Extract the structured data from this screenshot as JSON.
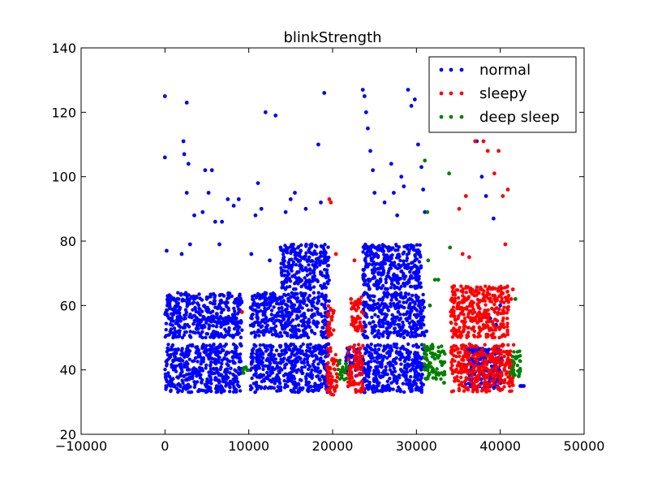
{
  "chart_data": {
    "type": "scatter",
    "title": "blinkStrength",
    "xlabel": "",
    "ylabel": "",
    "xlim": [
      -10000,
      50000
    ],
    "ylim": [
      20,
      140
    ],
    "xticks": [
      -10000,
      0,
      10000,
      20000,
      30000,
      40000,
      50000
    ],
    "yticks": [
      20,
      40,
      60,
      80,
      100,
      120,
      140
    ],
    "xtick_labels": [
      "−10000",
      "0",
      "10000",
      "20000",
      "30000",
      "40000",
      "50000"
    ],
    "ytick_labels": [
      "20",
      "40",
      "60",
      "80",
      "100",
      "120",
      "140"
    ],
    "grid": false,
    "legend": {
      "position": "top-right"
    },
    "series": [
      {
        "name": "normal",
        "color": "#0000ff",
        "points": [
          [
            0,
            125
          ],
          [
            0,
            106
          ],
          [
            200,
            77
          ],
          [
            300,
            60
          ],
          [
            500,
            56
          ],
          [
            800,
            62
          ],
          [
            1200,
            44
          ],
          [
            1500,
            55
          ],
          [
            2000,
            76
          ],
          [
            2200,
            111
          ],
          [
            2300,
            107
          ],
          [
            2600,
            123
          ],
          [
            2800,
            104
          ],
          [
            2600,
            95
          ],
          [
            3000,
            79
          ],
          [
            3500,
            88
          ],
          [
            4000,
            45
          ],
          [
            4500,
            89
          ],
          [
            4800,
            102
          ],
          [
            5200,
            95
          ],
          [
            5600,
            102
          ],
          [
            6000,
            86
          ],
          [
            6500,
            79
          ],
          [
            6800,
            86
          ],
          [
            7500,
            93
          ],
          [
            8200,
            91
          ],
          [
            8500,
            56
          ],
          [
            8800,
            93
          ],
          [
            9000,
            48
          ],
          [
            10300,
            76
          ],
          [
            10800,
            88
          ],
          [
            11100,
            98
          ],
          [
            11500,
            90
          ],
          [
            12000,
            120
          ],
          [
            12500,
            74
          ],
          [
            13200,
            119
          ],
          [
            13800,
            78
          ],
          [
            14400,
            89
          ],
          [
            15000,
            93
          ],
          [
            15500,
            95
          ],
          [
            16200,
            77
          ],
          [
            16800,
            90
          ],
          [
            17500,
            79
          ],
          [
            18300,
            110
          ],
          [
            18600,
            92
          ],
          [
            19000,
            126
          ],
          [
            19200,
            75
          ],
          [
            19500,
            48
          ],
          [
            23600,
            127
          ],
          [
            23800,
            125
          ],
          [
            24000,
            120
          ],
          [
            24200,
            115
          ],
          [
            24500,
            108
          ],
          [
            24800,
            102
          ],
          [
            25000,
            95
          ],
          [
            25300,
            78
          ],
          [
            25700,
            70
          ],
          [
            26200,
            92
          ],
          [
            26500,
            78
          ],
          [
            27000,
            104
          ],
          [
            27300,
            95
          ],
          [
            27700,
            88
          ],
          [
            28200,
            100
          ],
          [
            28500,
            97
          ],
          [
            29000,
            127
          ],
          [
            29400,
            122
          ],
          [
            29800,
            124
          ],
          [
            30200,
            110
          ],
          [
            30600,
            103
          ],
          [
            30800,
            96
          ],
          [
            31000,
            89
          ],
          [
            31200,
            52
          ],
          [
            36700,
            61
          ],
          [
            37200,
            111
          ],
          [
            37800,
            100
          ],
          [
            38300,
            94
          ],
          [
            38800,
            56
          ],
          [
            39200,
            87
          ],
          [
            39500,
            54
          ],
          [
            40000,
            60
          ],
          [
            42400,
            35
          ],
          [
            42600,
            35
          ],
          [
            42800,
            35
          ]
        ],
        "bands": [
          {
            "x": [
              0,
              9200
            ],
            "y": [
              33,
              48
            ]
          },
          {
            "x": [
              0,
              9200
            ],
            "y": [
              50,
              64
            ]
          },
          {
            "x": [
              10200,
              19600
            ],
            "y": [
              33,
              48
            ]
          },
          {
            "x": [
              10200,
              19600
            ],
            "y": [
              50,
              64
            ]
          },
          {
            "x": [
              13800,
              19600
            ],
            "y": [
              65,
              79
            ]
          },
          {
            "x": [
              21600,
              23400
            ],
            "y": [
              38,
              47
            ]
          },
          {
            "x": [
              23600,
              31000
            ],
            "y": [
              33,
              48
            ]
          },
          {
            "x": [
              23600,
              31000
            ],
            "y": [
              50,
              64
            ]
          },
          {
            "x": [
              23600,
              30600
            ],
            "y": [
              65,
              79
            ]
          },
          {
            "x": [
              35800,
              40200
            ],
            "y": [
              34,
              47
            ]
          }
        ]
      },
      {
        "name": "sleepy",
        "color": "#ff0000",
        "points": [
          [
            9200,
            58
          ],
          [
            19600,
            93
          ],
          [
            19800,
            92
          ],
          [
            20400,
            76
          ],
          [
            22200,
            62
          ],
          [
            22600,
            74
          ],
          [
            23000,
            60
          ],
          [
            34100,
            58
          ],
          [
            34500,
            66
          ],
          [
            35100,
            90
          ],
          [
            35500,
            76
          ],
          [
            35900,
            94
          ],
          [
            36300,
            75
          ],
          [
            37000,
            111
          ],
          [
            38000,
            111
          ],
          [
            38500,
            108
          ],
          [
            39300,
            101
          ],
          [
            39800,
            108
          ],
          [
            40300,
            94
          ],
          [
            40600,
            79
          ],
          [
            40900,
            96
          ],
          [
            41300,
            62
          ],
          [
            41500,
            65
          ]
        ],
        "bands": [
          {
            "x": [
              19300,
              20600
            ],
            "y": [
              32,
              47
            ]
          },
          {
            "x": [
              19300,
              20200
            ],
            "y": [
              50,
              60
            ]
          },
          {
            "x": [
              21800,
              23700
            ],
            "y": [
              33,
              48
            ]
          },
          {
            "x": [
              22200,
              23700
            ],
            "y": [
              52,
              63
            ]
          },
          {
            "x": [
              34100,
              41600
            ],
            "y": [
              33,
              48
            ]
          },
          {
            "x": [
              34100,
              41000
            ],
            "y": [
              50,
              66
            ]
          }
        ]
      },
      {
        "name": "deep sleep",
        "color": "#008000",
        "points": [
          [
            9300,
            40
          ],
          [
            9800,
            40
          ],
          [
            20800,
            42
          ],
          [
            21100,
            40
          ],
          [
            21400,
            37
          ],
          [
            31000,
            105
          ],
          [
            31300,
            89
          ],
          [
            31400,
            74
          ],
          [
            31600,
            60
          ],
          [
            32200,
            68
          ],
          [
            32600,
            68
          ],
          [
            33000,
            39
          ],
          [
            33300,
            36
          ],
          [
            33900,
            101
          ],
          [
            34000,
            78
          ],
          [
            41800,
            62
          ],
          [
            42000,
            44
          ],
          [
            42200,
            38
          ]
        ],
        "bands": [
          {
            "x": [
              9200,
              10000
            ],
            "y": [
              39,
              41
            ]
          },
          {
            "x": [
              20600,
              21700
            ],
            "y": [
              37,
              43
            ]
          },
          {
            "x": [
              30900,
              33400
            ],
            "y": [
              37,
              48
            ]
          },
          {
            "x": [
              41200,
              42400
            ],
            "y": [
              38,
              46
            ]
          }
        ]
      }
    ]
  }
}
